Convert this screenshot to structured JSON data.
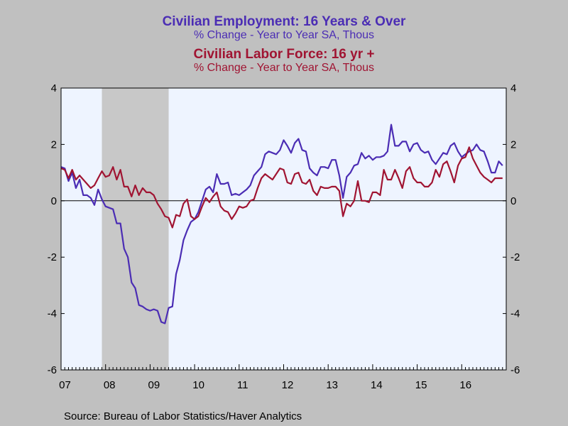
{
  "colors": {
    "employment": "#4b2db4",
    "labor_force": "#a01432",
    "plot_bg": "#eef4ff",
    "recession": "#c8c8c8",
    "page_bg": "#c0c0c0"
  },
  "source": "Source:  Bureau of Labor Statistics/Haver Analytics",
  "chart_data": {
    "type": "line",
    "titles": [
      {
        "title": "Civilian Employment: 16 Years & Over",
        "subtitle": "% Change - Year to Year     SA, Thous",
        "color": "#4b2db4"
      },
      {
        "title": "Civilian Labor Force: 16 yr +",
        "subtitle": "% Change - Year to Year     SA, Thous",
        "color": "#a01432"
      }
    ],
    "ylim": [
      -6,
      4
    ],
    "yticks": [
      4,
      2,
      0,
      -2,
      -4,
      -6
    ],
    "x_range": [
      2007.0,
      2017.0
    ],
    "x_tick_labels": [
      "07",
      "08",
      "09",
      "10",
      "11",
      "12",
      "13",
      "14",
      "15",
      "16"
    ],
    "recession_shading": [
      [
        2007.917,
        2009.417
      ]
    ],
    "zero_line": true,
    "grid": false,
    "series": [
      {
        "name": "Civilian Employment: 16 Years & Over",
        "color": "#4b2db4",
        "x": [
          2007.0,
          2007.083,
          2007.167,
          2007.25,
          2007.333,
          2007.417,
          2007.5,
          2007.583,
          2007.667,
          2007.75,
          2007.833,
          2007.917,
          2008.0,
          2008.083,
          2008.167,
          2008.25,
          2008.333,
          2008.417,
          2008.5,
          2008.583,
          2008.667,
          2008.75,
          2008.833,
          2008.917,
          2009.0,
          2009.083,
          2009.167,
          2009.25,
          2009.333,
          2009.417,
          2009.5,
          2009.583,
          2009.667,
          2009.75,
          2009.833,
          2009.917,
          2010.0,
          2010.083,
          2010.167,
          2010.25,
          2010.333,
          2010.417,
          2010.5,
          2010.583,
          2010.667,
          2010.75,
          2010.833,
          2010.917,
          2011.0,
          2011.083,
          2011.167,
          2011.25,
          2011.333,
          2011.417,
          2011.5,
          2011.583,
          2011.667,
          2011.75,
          2011.833,
          2011.917,
          2012.0,
          2012.083,
          2012.167,
          2012.25,
          2012.333,
          2012.417,
          2012.5,
          2012.583,
          2012.667,
          2012.75,
          2012.833,
          2012.917,
          2013.0,
          2013.083,
          2013.167,
          2013.25,
          2013.333,
          2013.417,
          2013.5,
          2013.583,
          2013.667,
          2013.75,
          2013.833,
          2013.917,
          2014.0,
          2014.083,
          2014.167,
          2014.25,
          2014.333,
          2014.417,
          2014.5,
          2014.583,
          2014.667,
          2014.75,
          2014.833,
          2014.917,
          2015.0,
          2015.083,
          2015.167,
          2015.25,
          2015.333,
          2015.417,
          2015.5,
          2015.583,
          2015.667,
          2015.75,
          2015.833,
          2015.917,
          2016.0,
          2016.083,
          2016.167,
          2016.25,
          2016.333,
          2016.417,
          2016.5,
          2016.583,
          2016.667,
          2016.75,
          2016.833,
          2016.917
        ],
        "values": [
          1.2,
          1.15,
          0.7,
          1.0,
          0.45,
          0.75,
          0.2,
          0.2,
          0.1,
          -0.15,
          0.4,
          0.05,
          -0.2,
          -0.25,
          -0.3,
          -0.8,
          -0.8,
          -1.7,
          -2.0,
          -2.9,
          -3.1,
          -3.7,
          -3.75,
          -3.85,
          -3.9,
          -3.85,
          -3.9,
          -4.3,
          -4.35,
          -3.8,
          -3.75,
          -2.6,
          -2.1,
          -1.4,
          -1.05,
          -0.75,
          -0.65,
          -0.4,
          0.0,
          0.4,
          0.5,
          0.3,
          0.95,
          0.6,
          0.6,
          0.65,
          0.2,
          0.25,
          0.2,
          0.3,
          0.4,
          0.55,
          0.9,
          1.05,
          1.2,
          1.65,
          1.75,
          1.7,
          1.65,
          1.8,
          2.15,
          1.95,
          1.7,
          2.05,
          2.2,
          1.8,
          1.75,
          1.15,
          1.0,
          0.9,
          1.2,
          1.2,
          1.15,
          1.45,
          1.45,
          0.9,
          0.1,
          0.85,
          1.0,
          1.25,
          1.3,
          1.7,
          1.5,
          1.6,
          1.45,
          1.55,
          1.55,
          1.6,
          1.75,
          2.7,
          1.95,
          1.95,
          2.1,
          2.1,
          1.75,
          2.0,
          2.05,
          1.8,
          1.7,
          1.75,
          1.45,
          1.3,
          1.5,
          1.7,
          1.65,
          1.95,
          2.05,
          1.75,
          1.55,
          1.65,
          1.75,
          1.8,
          2.0,
          1.8,
          1.75,
          1.4,
          1.0,
          1.0,
          1.4,
          1.25
        ]
      },
      {
        "name": "Civilian Labor Force: 16 yr +",
        "color": "#a01432",
        "x": [
          2007.0,
          2007.083,
          2007.167,
          2007.25,
          2007.333,
          2007.417,
          2007.5,
          2007.583,
          2007.667,
          2007.75,
          2007.833,
          2007.917,
          2008.0,
          2008.083,
          2008.167,
          2008.25,
          2008.333,
          2008.417,
          2008.5,
          2008.583,
          2008.667,
          2008.75,
          2008.833,
          2008.917,
          2009.0,
          2009.083,
          2009.167,
          2009.25,
          2009.333,
          2009.417,
          2009.5,
          2009.583,
          2009.667,
          2009.75,
          2009.833,
          2009.917,
          2010.0,
          2010.083,
          2010.167,
          2010.25,
          2010.333,
          2010.417,
          2010.5,
          2010.583,
          2010.667,
          2010.75,
          2010.833,
          2010.917,
          2011.0,
          2011.083,
          2011.167,
          2011.25,
          2011.333,
          2011.417,
          2011.5,
          2011.583,
          2011.667,
          2011.75,
          2011.833,
          2011.917,
          2012.0,
          2012.083,
          2012.167,
          2012.25,
          2012.333,
          2012.417,
          2012.5,
          2012.583,
          2012.667,
          2012.75,
          2012.833,
          2012.917,
          2013.0,
          2013.083,
          2013.167,
          2013.25,
          2013.333,
          2013.417,
          2013.5,
          2013.583,
          2013.667,
          2013.75,
          2013.833,
          2013.917,
          2014.0,
          2014.083,
          2014.167,
          2014.25,
          2014.333,
          2014.417,
          2014.5,
          2014.583,
          2014.667,
          2014.75,
          2014.833,
          2014.917,
          2015.0,
          2015.083,
          2015.167,
          2015.25,
          2015.333,
          2015.417,
          2015.5,
          2015.583,
          2015.667,
          2015.75,
          2015.833,
          2015.917,
          2016.0,
          2016.083,
          2016.167,
          2016.25,
          2016.333,
          2016.417,
          2016.5,
          2016.583,
          2016.667,
          2016.75,
          2016.833,
          2016.917
        ],
        "values": [
          1.15,
          1.1,
          0.8,
          1.1,
          0.75,
          0.9,
          0.75,
          0.6,
          0.45,
          0.55,
          0.8,
          1.05,
          0.85,
          0.9,
          1.2,
          0.75,
          1.1,
          0.5,
          0.5,
          0.15,
          0.55,
          0.2,
          0.45,
          0.3,
          0.3,
          0.2,
          -0.1,
          -0.3,
          -0.55,
          -0.6,
          -0.95,
          -0.5,
          -0.55,
          -0.1,
          0.05,
          -0.55,
          -0.65,
          -0.55,
          -0.2,
          0.1,
          -0.05,
          0.15,
          0.3,
          -0.2,
          -0.35,
          -0.4,
          -0.65,
          -0.45,
          -0.2,
          -0.25,
          -0.2,
          0.0,
          0.05,
          0.45,
          0.8,
          0.95,
          0.85,
          0.75,
          0.95,
          1.15,
          1.1,
          0.65,
          0.6,
          0.95,
          1.0,
          0.65,
          0.6,
          0.75,
          0.35,
          0.2,
          0.5,
          0.45,
          0.45,
          0.5,
          0.5,
          0.35,
          -0.55,
          -0.1,
          -0.2,
          0.0,
          0.7,
          0.0,
          0.0,
          -0.05,
          0.3,
          0.3,
          0.2,
          1.1,
          0.75,
          0.75,
          1.1,
          0.8,
          0.45,
          1.05,
          1.2,
          0.8,
          0.65,
          0.65,
          0.5,
          0.5,
          0.65,
          1.1,
          0.85,
          1.3,
          1.4,
          1.05,
          0.65,
          1.25,
          1.5,
          1.55,
          1.9,
          1.5,
          1.25,
          1.0,
          0.85,
          0.75,
          0.65,
          0.8,
          0.8,
          0.8
        ]
      }
    ]
  }
}
